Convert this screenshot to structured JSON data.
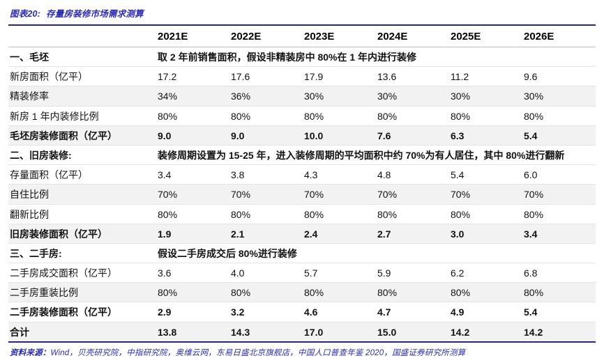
{
  "title": {
    "prefix": "图表20:",
    "text": "存量房装修市场需求测算"
  },
  "chart_data": {
    "type": "table",
    "title": "存量房装修市场需求测算",
    "columns": [
      "",
      "2021E",
      "2022E",
      "2023E",
      "2024E",
      "2025E",
      "2026E"
    ],
    "rows": [
      {
        "type": "section",
        "label": "一、毛坯",
        "note": "取 2 年前销售面积，假设非精装房中 80%在 1 年内进行装修",
        "shade": false
      },
      {
        "type": "data",
        "label": "新房面积（亿平）",
        "values": [
          "17.2",
          "17.6",
          "17.9",
          "13.6",
          "11.2",
          "9.6"
        ],
        "bold": false,
        "shade": false
      },
      {
        "type": "data",
        "label": "精装修率",
        "values": [
          "34%",
          "36%",
          "30%",
          "30%",
          "30%",
          "30%"
        ],
        "bold": false,
        "shade": true
      },
      {
        "type": "data",
        "label": "新房 1 年内装修比例",
        "values": [
          "80%",
          "80%",
          "80%",
          "80%",
          "80%",
          "80%"
        ],
        "bold": false,
        "shade": false
      },
      {
        "type": "data",
        "label": "毛坯房装修面积（亿平）",
        "values": [
          "9.0",
          "9.0",
          "10.0",
          "7.6",
          "6.3",
          "5.4"
        ],
        "bold": true,
        "shade": true
      },
      {
        "type": "section",
        "label": "二、旧房装修:",
        "note": "装修周期设置为 15-25 年，进入装修周期的平均面积中约 70%为有人居住，其中 80%进行翻新",
        "shade": false
      },
      {
        "type": "data",
        "label": "存量面积（亿平）",
        "values": [
          "3.4",
          "3.8",
          "4.3",
          "4.8",
          "5.4",
          "6.0"
        ],
        "bold": false,
        "shade": false
      },
      {
        "type": "data",
        "label": "自住比例",
        "values": [
          "70%",
          "70%",
          "70%",
          "70%",
          "70%",
          "70%"
        ],
        "bold": false,
        "shade": true
      },
      {
        "type": "data",
        "label": "翻新比例",
        "values": [
          "80%",
          "80%",
          "80%",
          "80%",
          "80%",
          "80%"
        ],
        "bold": false,
        "shade": false
      },
      {
        "type": "data",
        "label": "旧房装修面积（亿平）",
        "values": [
          "1.9",
          "2.1",
          "2.4",
          "2.7",
          "3.0",
          "3.4"
        ],
        "bold": true,
        "shade": true
      },
      {
        "type": "section",
        "label": "三、二手房:",
        "note": "假设二手房成交后 80%进行装修",
        "shade": false
      },
      {
        "type": "data",
        "label": "二手房成交面积（亿平）",
        "values": [
          "3.6",
          "4.0",
          "5.7",
          "5.9",
          "6.2",
          "6.8"
        ],
        "bold": false,
        "shade": false
      },
      {
        "type": "data",
        "label": "二手房重装比例",
        "values": [
          "80%",
          "80%",
          "80%",
          "80%",
          "80%",
          "80%"
        ],
        "bold": false,
        "shade": true
      },
      {
        "type": "data",
        "label": "二手房装修面积（亿平）",
        "values": [
          "2.9",
          "3.2",
          "4.6",
          "4.7",
          "4.9",
          "5.4"
        ],
        "bold": true,
        "shade": false
      },
      {
        "type": "data",
        "label": "合计",
        "values": [
          "13.8",
          "14.3",
          "17.0",
          "15.0",
          "14.2",
          "14.2"
        ],
        "bold": true,
        "shade": true
      }
    ]
  },
  "source": {
    "label": "资料来源：",
    "text": "Wind，贝壳研究院，中指研究院，奥维云网，东易日盛北京旗舰店，中国人口普查年鉴 2020，国盛证券研究所测算"
  },
  "colors": {
    "accent": "#2b2bb0",
    "navy_border": "#26267e",
    "row_shade": "#f2f2f2",
    "row_rule": "#e2e4ec"
  }
}
